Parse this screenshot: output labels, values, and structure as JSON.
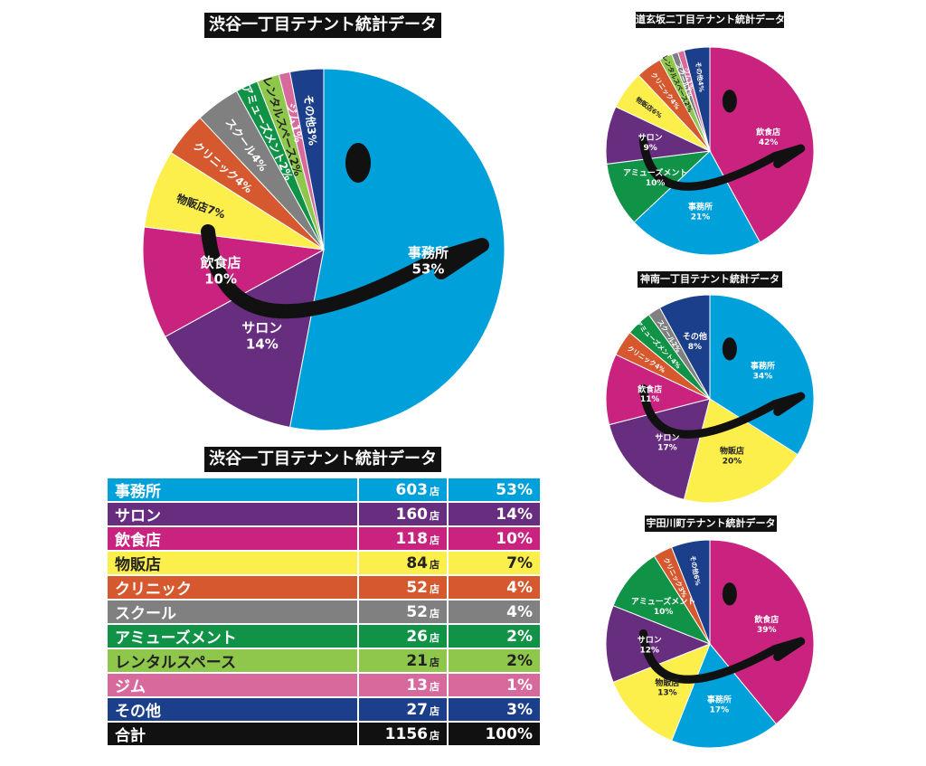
{
  "colors": {
    "office": "#00a0db",
    "salon": "#672d7f",
    "food": "#c9237f",
    "retail": "#fcee4b",
    "clinic": "#d6582f",
    "school": "#808080",
    "amusement": "#109247",
    "rental": "#8fc74d",
    "gym": "#d8699d",
    "other": "#1b3f8b",
    "total": "#111111"
  },
  "main_title": "渋谷一丁目テナント統計データ",
  "table": {
    "title": "渋谷一丁目テナント統計データ",
    "unit": "店",
    "rows": [
      {
        "label": "事務所",
        "count": "603",
        "pct": "53%",
        "color": "office"
      },
      {
        "label": "サロン",
        "count": "160",
        "pct": "14%",
        "color": "salon"
      },
      {
        "label": "飲食店",
        "count": "118",
        "pct": "10%",
        "color": "food"
      },
      {
        "label": "物販店",
        "count": "84",
        "pct": "7%",
        "color": "retail"
      },
      {
        "label": "クリニック",
        "count": "52",
        "pct": "4%",
        "color": "clinic"
      },
      {
        "label": "スクール",
        "count": "52",
        "pct": "4%",
        "color": "school"
      },
      {
        "label": "アミューズメント",
        "count": "26",
        "pct": "2%",
        "color": "amusement"
      },
      {
        "label": "レンタルスペース",
        "count": "21",
        "pct": "2%",
        "color": "rental"
      },
      {
        "label": "ジム",
        "count": "13",
        "pct": "1%",
        "color": "gym"
      },
      {
        "label": "その他",
        "count": "27",
        "pct": "3%",
        "color": "other"
      },
      {
        "label": "合計",
        "count": "1156",
        "pct": "100%",
        "color": "total"
      }
    ]
  },
  "chart_data": [
    {
      "type": "pie",
      "title": "渋谷一丁目テナント統計データ",
      "slices": [
        {
          "label": "事務所",
          "value": 53,
          "value_label": "53%",
          "color": "office"
        },
        {
          "label": "サロン",
          "value": 14,
          "value_label": "14%",
          "color": "salon"
        },
        {
          "label": "飲食店",
          "value": 10,
          "value_label": "10%",
          "color": "food"
        },
        {
          "label": "物販店",
          "value": 7,
          "value_label": "7%",
          "color": "retail"
        },
        {
          "label": "クリニック",
          "value": 4,
          "value_label": "4%",
          "color": "clinic"
        },
        {
          "label": "スクール",
          "value": 4,
          "value_label": "4%",
          "color": "school"
        },
        {
          "label": "アミューズメント",
          "value": 2,
          "value_label": "2%",
          "color": "amusement"
        },
        {
          "label": "レンタルスペース",
          "value": 2,
          "value_label": "2%",
          "color": "rental"
        },
        {
          "label": "ジム",
          "value": 1,
          "value_label": "1%",
          "color": "gym"
        },
        {
          "label": "その他",
          "value": 3,
          "value_label": "3%",
          "color": "other"
        }
      ]
    },
    {
      "type": "pie",
      "title": "道玄坂二丁目テナント統計データ",
      "slices": [
        {
          "label": "飲食店",
          "value": 42,
          "value_label": "42%",
          "color": "food"
        },
        {
          "label": "事務所",
          "value": 21,
          "value_label": "21%",
          "color": "office"
        },
        {
          "label": "アミューズメント",
          "value": 10,
          "value_label": "10%",
          "color": "amusement"
        },
        {
          "label": "サロン",
          "value": 9,
          "value_label": "9%",
          "color": "salon"
        },
        {
          "label": "物販店",
          "value": 6,
          "value_label": "6%",
          "color": "retail"
        },
        {
          "label": "クリニック",
          "value": 4,
          "value_label": "4%",
          "color": "clinic"
        },
        {
          "label": "レンタルスペース",
          "value": 2,
          "value_label": "2%",
          "color": "rental"
        },
        {
          "label": "スクール",
          "value": 1,
          "value_label": "1%",
          "color": "school"
        },
        {
          "label": "ジム",
          "value": 1,
          "value_label": "1%",
          "color": "gym"
        },
        {
          "label": "その他",
          "value": 4,
          "value_label": "4%",
          "color": "other"
        }
      ]
    },
    {
      "type": "pie",
      "title": "神南一丁目テナント統計データ",
      "slices": [
        {
          "label": "事務所",
          "value": 34,
          "value_label": "34%",
          "color": "office"
        },
        {
          "label": "物販店",
          "value": 20,
          "value_label": "20%",
          "color": "retail"
        },
        {
          "label": "サロン",
          "value": 17,
          "value_label": "17%",
          "color": "salon"
        },
        {
          "label": "飲食店",
          "value": 11,
          "value_label": "11%",
          "color": "food"
        },
        {
          "label": "クリニック",
          "value": 4,
          "value_label": "4%",
          "color": "clinic"
        },
        {
          "label": "アミューズメント",
          "value": 4,
          "value_label": "4%",
          "color": "amusement"
        },
        {
          "label": "スクール",
          "value": 2,
          "value_label": "2%",
          "color": "school"
        },
        {
          "label": "その他",
          "value": 8,
          "value_label": "8%",
          "color": "other"
        }
      ]
    },
    {
      "type": "pie",
      "title": "宇田川町テナント統計データ",
      "slices": [
        {
          "label": "飲食店",
          "value": 39,
          "value_label": "39%",
          "color": "food"
        },
        {
          "label": "事務所",
          "value": 17,
          "value_label": "17%",
          "color": "office"
        },
        {
          "label": "物販店",
          "value": 13,
          "value_label": "13%",
          "color": "retail"
        },
        {
          "label": "サロン",
          "value": 12,
          "value_label": "12%",
          "color": "salon"
        },
        {
          "label": "アミューズメント",
          "value": 10,
          "value_label": "10%",
          "color": "amusement"
        },
        {
          "label": "クリニック",
          "value": 3,
          "value_label": "3%",
          "color": "clinic"
        },
        {
          "label": "その他",
          "value": 6,
          "value_label": "6%",
          "color": "other"
        }
      ]
    }
  ]
}
